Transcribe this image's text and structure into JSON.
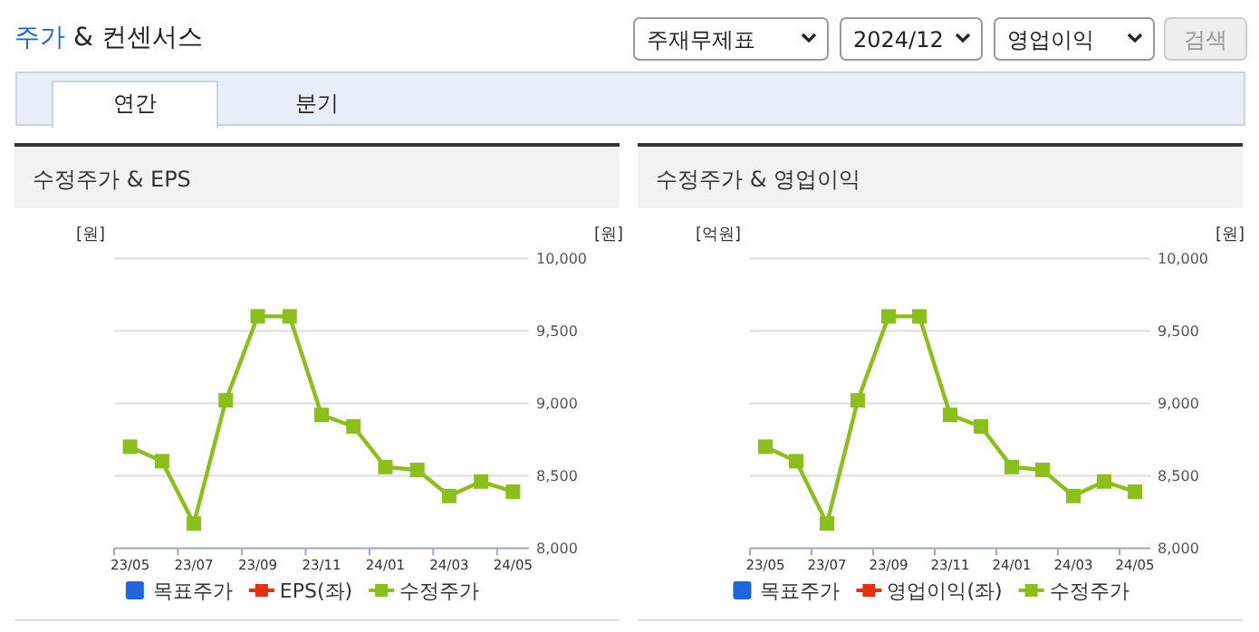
{
  "chart_data": [
    {
      "type": "other",
      "title": "주가 & 컨센서스",
      "annotations": [
        "주재무제표",
        "2024/12",
        "영업이익",
        "검색",
        "연간",
        "분기"
      ]
    },
    {
      "type": "line",
      "title": "수정주가 & EPS",
      "ylabel": "[원]",
      "y2label": "[원]",
      "categories": [
        "23/05",
        null,
        "23/07",
        null,
        "23/09",
        null,
        "23/11",
        null,
        "24/01",
        null,
        "24/03",
        null,
        "24/05"
      ],
      "y2lim": [
        8000,
        10000
      ],
      "y2ticks": [
        {
          "value": 8000,
          "label": "8,000"
        },
        {
          "value": 8500,
          "label": "8,500"
        },
        {
          "value": 9000,
          "label": "9,000"
        },
        {
          "value": 9500,
          "label": "9,500"
        },
        {
          "value": 10000,
          "label": "10,000"
        }
      ],
      "grid": true,
      "legend": "bottom",
      "marker": "square",
      "series": [
        {
          "name": "목표주가",
          "type": "bar",
          "color": "#2266dd",
          "values": [
            null,
            null,
            null,
            null,
            null,
            null,
            null,
            null,
            null,
            null,
            null,
            null,
            null
          ]
        },
        {
          "name": "EPS(좌)",
          "type": "line",
          "color": "#dd3311",
          "values": [
            null,
            null,
            null,
            null,
            null,
            null,
            null,
            null,
            null,
            null,
            null,
            null,
            null
          ]
        },
        {
          "name": "수정주가",
          "type": "line",
          "axis": "y2",
          "color": "#8cbe1e",
          "values": [
            8700,
            8600,
            8170,
            9020,
            9600,
            9600,
            8920,
            8840,
            8560,
            8540,
            8360,
            8460,
            8390
          ]
        }
      ]
    },
    {
      "type": "line",
      "title": "수정주가 & 영업이익",
      "ylabel": "[억원]",
      "y2label": "[원]",
      "categories": [
        "23/05",
        null,
        "23/07",
        null,
        "23/09",
        null,
        "23/11",
        null,
        "24/01",
        null,
        "24/03",
        null,
        "24/05"
      ],
      "y2lim": [
        8000,
        10000
      ],
      "y2ticks": [
        {
          "value": 8000,
          "label": "8,000"
        },
        {
          "value": 8500,
          "label": "8,500"
        },
        {
          "value": 9000,
          "label": "9,000"
        },
        {
          "value": 9500,
          "label": "9,500"
        },
        {
          "value": 10000,
          "label": "10,000"
        }
      ],
      "grid": true,
      "legend": "bottom",
      "marker": "square",
      "series": [
        {
          "name": "목표주가",
          "type": "bar",
          "color": "#2266dd",
          "values": [
            null,
            null,
            null,
            null,
            null,
            null,
            null,
            null,
            null,
            null,
            null,
            null,
            null
          ]
        },
        {
          "name": "영업이익(좌)",
          "type": "line",
          "color": "#dd3311",
          "values": [
            null,
            null,
            null,
            null,
            null,
            null,
            null,
            null,
            null,
            null,
            null,
            null,
            null
          ]
        },
        {
          "name": "수정주가",
          "type": "line",
          "axis": "y2",
          "color": "#8cbe1e",
          "values": [
            8700,
            8600,
            8170,
            9020,
            9600,
            9600,
            8920,
            8840,
            8560,
            8540,
            8360,
            8460,
            8390
          ]
        }
      ]
    }
  ]
}
